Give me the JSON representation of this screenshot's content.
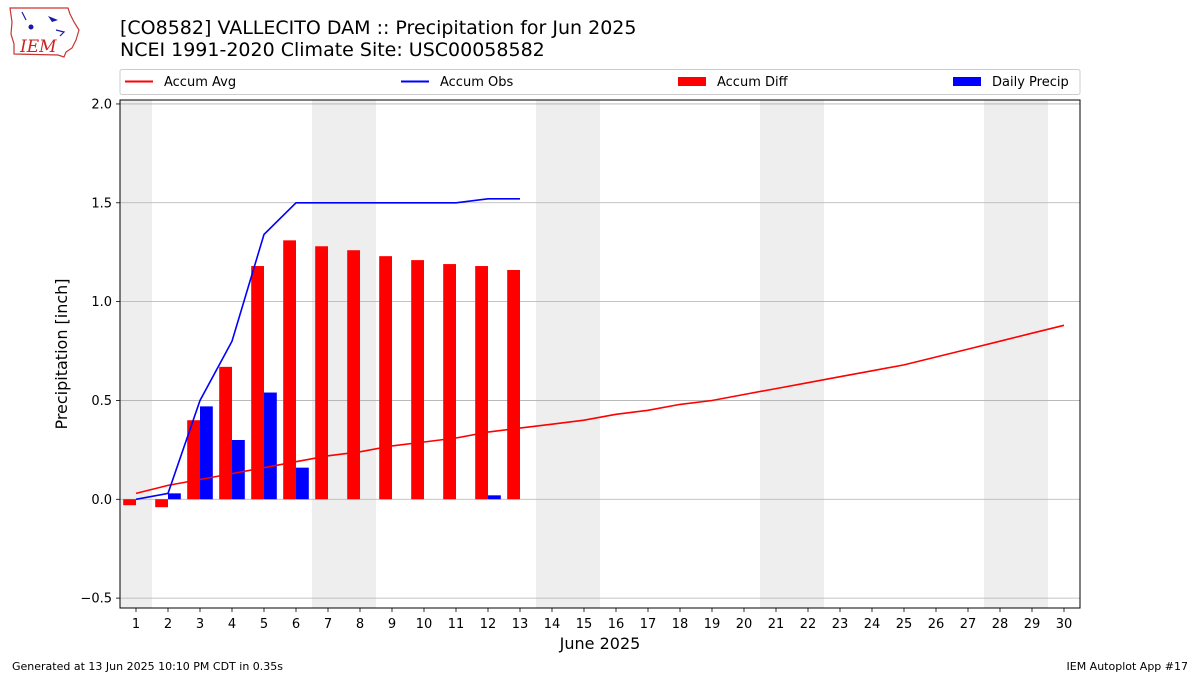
{
  "header": {
    "title_line1": "[CO8582] VALLECITO DAM :: Precipitation for Jun 2025",
    "title_line2": "NCEI 1991-2020 Climate Site: USC00058582"
  },
  "logo": {
    "text": "IEM"
  },
  "footer": {
    "generated": "Generated at 13 Jun 2025 10:10 PM CDT in 0.35s",
    "app": "IEM Autoplot App #17"
  },
  "colors": {
    "avg": "#ff0000",
    "obs": "#0000ff",
    "diff": "#ff0000",
    "daily": "#0000ff",
    "weekend": "#eeeeee",
    "grid": "#b0b0b0"
  },
  "chart_data": {
    "type": "bar",
    "xlabel": "June 2025",
    "ylabel": "Precipitation [inch]",
    "xlim": [
      0.5,
      30.5
    ],
    "ylim": [
      -0.55,
      2.02
    ],
    "grid": true,
    "legend_placement": "top",
    "days": [
      1,
      2,
      3,
      4,
      5,
      6,
      7,
      8,
      9,
      10,
      11,
      12,
      13,
      14,
      15,
      16,
      17,
      18,
      19,
      20,
      21,
      22,
      23,
      24,
      25,
      26,
      27,
      28,
      29,
      30
    ],
    "yticks": [
      -0.5,
      0.0,
      0.5,
      1.0,
      1.5,
      2.0
    ],
    "ytick_labels": [
      "−0.5",
      "0.0",
      "0.5",
      "1.0",
      "1.5",
      "2.0"
    ],
    "weekend_days": [
      1,
      7,
      8,
      14,
      15,
      21,
      22,
      28,
      29
    ],
    "series": [
      {
        "name": "Accum Avg",
        "kind": "line",
        "x": [
          1,
          2,
          3,
          4,
          5,
          6,
          7,
          8,
          9,
          10,
          11,
          12,
          13,
          14,
          15,
          16,
          17,
          18,
          19,
          20,
          21,
          22,
          23,
          24,
          25,
          26,
          27,
          28,
          29,
          30
        ],
        "values": [
          0.03,
          0.07,
          0.1,
          0.13,
          0.16,
          0.19,
          0.22,
          0.24,
          0.27,
          0.29,
          0.31,
          0.34,
          0.36,
          0.38,
          0.4,
          0.43,
          0.45,
          0.48,
          0.5,
          0.53,
          0.56,
          0.59,
          0.62,
          0.65,
          0.68,
          0.72,
          0.76,
          0.8,
          0.84,
          0.88
        ]
      },
      {
        "name": "Accum Obs",
        "kind": "line",
        "x": [
          1,
          2,
          3,
          4,
          5,
          6,
          7,
          8,
          9,
          10,
          11,
          12,
          13
        ],
        "values": [
          0.0,
          0.03,
          0.5,
          0.8,
          1.34,
          1.5,
          1.5,
          1.5,
          1.5,
          1.5,
          1.5,
          1.52,
          1.52
        ]
      },
      {
        "name": "Accum Diff",
        "kind": "bar",
        "x": [
          1,
          2,
          3,
          4,
          5,
          6,
          7,
          8,
          9,
          10,
          11,
          12,
          13
        ],
        "values": [
          -0.03,
          -0.04,
          0.4,
          0.67,
          1.18,
          1.31,
          1.28,
          1.26,
          1.23,
          1.21,
          1.19,
          1.18,
          1.16
        ]
      },
      {
        "name": "Daily Precip",
        "kind": "bar",
        "x": [
          1,
          2,
          3,
          4,
          5,
          6,
          7,
          8,
          9,
          10,
          11,
          12,
          13
        ],
        "values": [
          0.0,
          0.03,
          0.47,
          0.3,
          0.54,
          0.16,
          0.0,
          0.0,
          0.0,
          0.0,
          0.0,
          0.02,
          0.0
        ]
      }
    ]
  }
}
